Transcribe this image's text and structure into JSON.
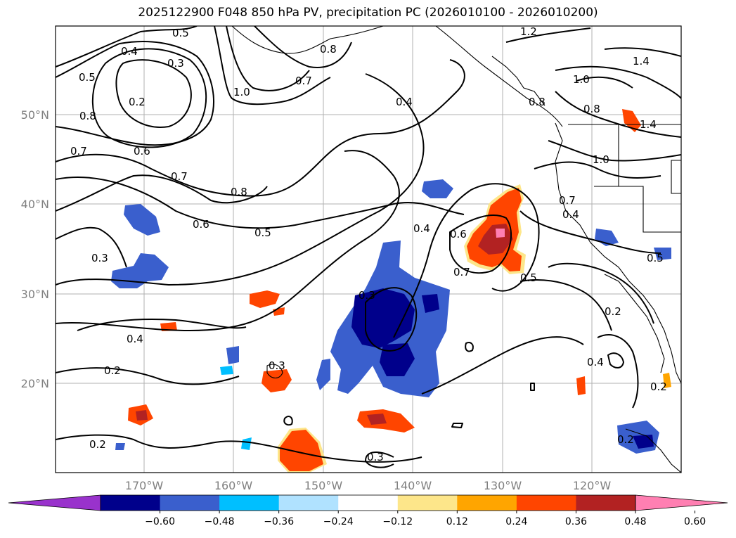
{
  "title": "2025122900 F048 850 hPa PV, precipitation PC (2026010100 - 2026010200)",
  "map": {
    "lat_labels": [
      "50°N",
      "40°N",
      "30°N",
      "20°N"
    ],
    "lon_labels": [
      "170°W",
      "160°W",
      "150°W",
      "140°W",
      "130°W",
      "120°W"
    ]
  },
  "contour_labels": [
    "0.5",
    "0.4",
    "0.3",
    "0.2",
    "0.5",
    "0.8",
    "0.6",
    "0.7",
    "0.7",
    "0.8",
    "0.6",
    "0.5",
    "1.0",
    "0.7",
    "0.8",
    "1.2",
    "1.4",
    "1.0",
    "0.8",
    "1.4",
    "0.4",
    "0.4",
    "0.6",
    "0.7",
    "0.5",
    "0.8",
    "1.0",
    "0.7",
    "0.3",
    "0.3",
    "0.4",
    "0.2",
    "0.2",
    "0.3",
    "0.3",
    "0.5",
    "0.2",
    "0.4",
    "0.2",
    "0.2",
    "0.4"
  ],
  "colorbar": {
    "colors": [
      "#9932cc",
      "#00008b",
      "#3a5fcd",
      "#00bfff",
      "#b0e2ff",
      "#ffffff",
      "#fde68a",
      "#ffa500",
      "#ff4500",
      "#b22222",
      "#ff7fb2"
    ],
    "tick_labels": [
      "−0.60",
      "−0.48",
      "−0.36",
      "−0.24",
      "−0.12",
      "0.12",
      "0.24",
      "0.36",
      "0.48",
      "0.60"
    ]
  }
}
